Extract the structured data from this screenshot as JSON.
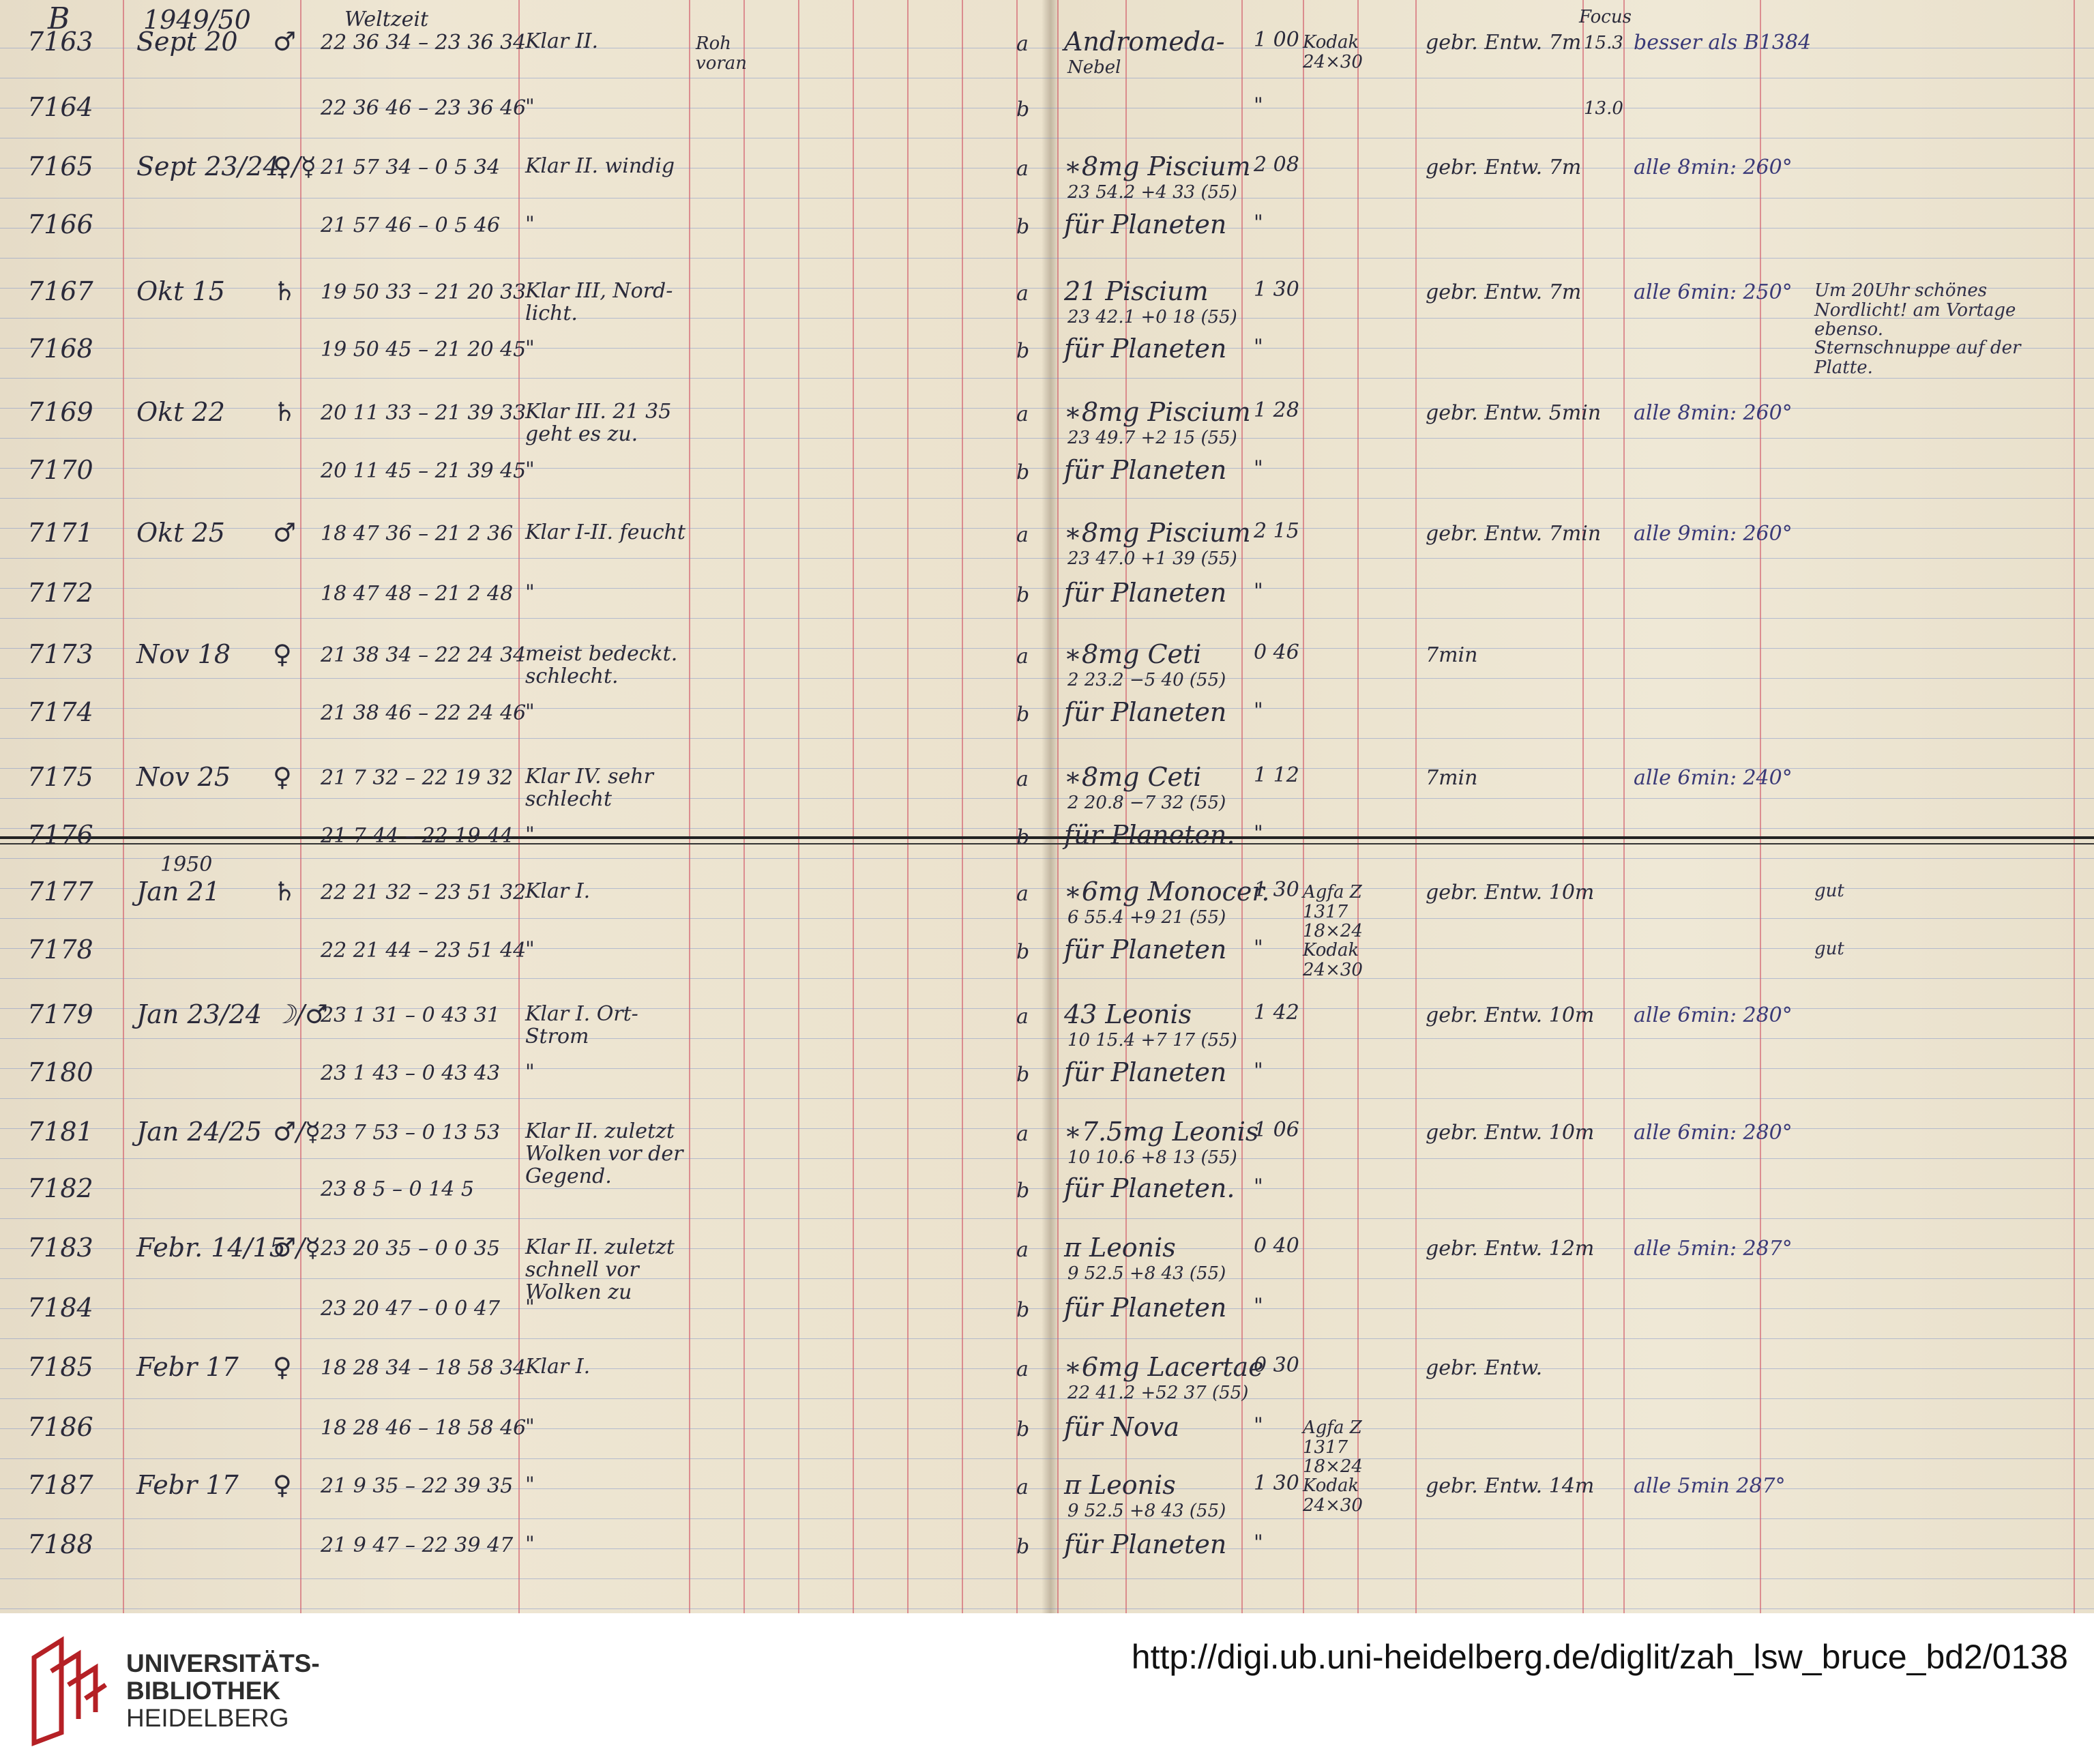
{
  "header": {
    "sheet": "B",
    "years": "1949/50",
    "time_label": "Weltzeit",
    "focus_label": "Focus",
    "note_header": "Roh voran"
  },
  "entries": [
    {
      "no": "7163",
      "date": "Sept 20",
      "day": "♂",
      "time": "22 36 34 – 23 36 34",
      "sky": "Klar II.",
      "p": "a",
      "object": "Andromeda-",
      "obj2": "Nebel",
      "mag": "1 00",
      "plate": "Kodak 24×30",
      "dev": "gebr. Entw. 7m",
      "focus": "15.3",
      "remark": "besser als B1384"
    },
    {
      "no": "7164",
      "time": "22 36 46 – 23 36 46",
      "sky": "\"",
      "p": "b",
      "mag": "\"",
      "focus": "13.0"
    },
    {
      "no": "7165",
      "date": "Sept 23/24",
      "day": "♀/☿",
      "time": "21 57 34 – 0 5 34",
      "sky": "Klar II. windig",
      "p": "a",
      "object": "∗8mg Piscium",
      "obj2": "23 54.2 +4 33 (55)",
      "mag": "2 08",
      "dev": "gebr. Entw. 7m",
      "remark": "alle 8min: 260°"
    },
    {
      "no": "7166",
      "time": "21 57 46 – 0 5 46",
      "sky": "\"",
      "p": "b",
      "object": "für Planeten",
      "mag": "\""
    },
    {
      "no": "7167",
      "date": "Okt 15",
      "day": "♄",
      "time": "19 50 33 – 21 20 33",
      "sky": "Klar III, Nord-licht.",
      "p": "a",
      "object": "21 Piscium",
      "obj2": "23 42.1 +0 18 (55)",
      "mag": "1 30",
      "dev": "gebr. Entw. 7m",
      "remark": "alle 6min: 250°",
      "note": "Um 20Uhr schönes Nordlicht! am Vortage ebenso."
    },
    {
      "no": "7168",
      "time": "19 50 45 – 21 20 45",
      "sky": "\"",
      "p": "b",
      "object": "für Planeten",
      "mag": "\"",
      "note": "Sternschnuppe auf der Platte."
    },
    {
      "no": "7169",
      "date": "Okt 22",
      "day": "♄",
      "time": "20 11 33 – 21 39 33",
      "sky": "Klar III. 21 35 geht es zu.",
      "p": "a",
      "object": "∗8mg Piscium",
      "obj2": "23 49.7 +2 15 (55)",
      "mag": "1 28",
      "dev": "gebr. Entw. 5min",
      "remark": "alle 8min: 260°"
    },
    {
      "no": "7170",
      "time": "20 11 45 – 21 39 45",
      "sky": "\"",
      "p": "b",
      "object": "für Planeten",
      "mag": "\""
    },
    {
      "no": "7171",
      "date": "Okt 25",
      "day": "♂",
      "time": "18 47 36 – 21 2 36",
      "sky": "Klar I-II. feucht",
      "p": "a",
      "object": "∗8mg Piscium",
      "obj2": "23 47.0 +1 39 (55)",
      "mag": "2 15",
      "dev": "gebr. Entw. 7min",
      "remark": "alle 9min: 260°"
    },
    {
      "no": "7172",
      "time": "18 47 48 – 21 2 48",
      "sky": "\"",
      "p": "b",
      "object": "für Planeten",
      "mag": "\""
    },
    {
      "no": "7173",
      "date": "Nov 18",
      "day": "♀",
      "time": "21 38 34 – 22 24 34",
      "sky": "meist bedeckt. schlecht.",
      "p": "a",
      "object": "∗8mg Ceti",
      "obj2": "2 23.2 −5 40 (55)",
      "mag": "0 46",
      "dev": "7min"
    },
    {
      "no": "7174",
      "time": "21 38 46 – 22 24 46",
      "sky": "\"",
      "p": "b",
      "object": "für Planeten",
      "mag": "\""
    },
    {
      "no": "7175",
      "date": "Nov 25",
      "day": "♀",
      "time": "21 7 32 – 22 19 32",
      "sky": "Klar IV. sehr schlecht",
      "p": "a",
      "object": "∗8mg Ceti",
      "obj2": "2 20.8 −7 32 (55)",
      "mag": "1 12",
      "dev": "7min",
      "remark": "alle 6min: 240°"
    },
    {
      "no": "7176",
      "time": "21 7 44 – 22 19 44",
      "sky": "\"",
      "p": "b",
      "object": "für Planeten.",
      "mag": "\""
    },
    {
      "no": "7177",
      "year": "1950",
      "date": "Jan 21",
      "day": "♄",
      "time": "22 21 32 – 23 51 32",
      "sky": "Klar I.",
      "p": "a",
      "object": "∗6mg Monocer.",
      "obj2": "6 55.4 +9 21 (55)",
      "mag": "1 30",
      "plate": "Agfa Z 1317 18×24",
      "dev": "gebr. Entw. 10m",
      "note": "gut"
    },
    {
      "no": "7178",
      "time": "22 21 44 – 23 51 44",
      "sky": "\"",
      "p": "b",
      "object": "für Planeten",
      "mag": "\"",
      "plate": "Kodak 24×30",
      "note": "gut"
    },
    {
      "no": "7179",
      "date": "Jan 23/24",
      "day": "☽/♂",
      "time": "23 1 31 – 0 43 31",
      "sky": "Klar I. Ort-Strom",
      "p": "a",
      "object": "43 Leonis",
      "obj2": "10 15.4 +7 17 (55)",
      "mag": "1 42",
      "dev": "gebr. Entw. 10m",
      "remark": "alle 6min: 280°"
    },
    {
      "no": "7180",
      "time": "23 1 43 – 0 43 43",
      "sky": "\"",
      "p": "b",
      "object": "für Planeten",
      "mag": "\""
    },
    {
      "no": "7181",
      "date": "Jan 24/25",
      "day": "♂/☿",
      "time": "23 7 53 – 0 13 53",
      "sky": "Klar II. zuletzt Wolken vor der Gegend.",
      "p": "a",
      "object": "∗7.5mg Leonis",
      "obj2": "10 10.6 +8 13 (55)",
      "mag": "1 06",
      "dev": "gebr. Entw. 10m",
      "remark": "alle 6min: 280°"
    },
    {
      "no": "7182",
      "time": "23 8 5 – 0 14 5",
      "sky": "",
      "p": "b",
      "object": "für Planeten.",
      "mag": "\""
    },
    {
      "no": "7183",
      "date": "Febr. 14/15",
      "day": "♂/☿",
      "time": "23 20 35 – 0 0 35",
      "sky": "Klar II. zuletzt schnell vor Wolken zu",
      "p": "a",
      "object": "π Leonis",
      "obj2": "9 52.5 +8 43 (55)",
      "mag": "0 40",
      "dev": "gebr. Entw. 12m",
      "remark": "alle 5min: 287°"
    },
    {
      "no": "7184",
      "time": "23 20 47 – 0 0 47",
      "sky": "\"",
      "p": "b",
      "object": "für Planeten",
      "mag": "\""
    },
    {
      "no": "7185",
      "date": "Febr 17",
      "day": "♀",
      "time": "18 28 34 – 18 58 34",
      "sky": "Klar I.",
      "p": "a",
      "object": "∗6mg Lacertae",
      "obj2": "22 41.2 +52 37 (55)",
      "mag": "0 30",
      "dev": "gebr. Entw."
    },
    {
      "no": "7186",
      "time": "18 28 46 – 18 58 46",
      "sky": "\"",
      "p": "b",
      "object": "für Nova",
      "mag": "\"",
      "plate": "Agfa Z 1317 18×24"
    },
    {
      "no": "7187",
      "date": "Febr 17",
      "day": "♀",
      "time": "21 9 35 – 22 39 35",
      "sky": "\"",
      "p": "a",
      "object": "π Leonis",
      "obj2": "9 52.5 +8 43 (55)",
      "mag": "1 30",
      "plate": "Kodak 24×30",
      "dev": "gebr. Entw. 14m",
      "remark": "alle 5min 287°"
    },
    {
      "no": "7188",
      "time": "21 9 47 – 22 39 47",
      "sky": "\"",
      "p": "b",
      "object": "für Planeten",
      "mag": "\""
    }
  ],
  "footer": {
    "logo_lines": [
      "UNIVERSITÄTS-",
      "BIBLIOTHEK",
      "HEIDELBERG"
    ],
    "url": "http://digi.ub.uni-heidelberg.de/diglit/zah_lsw_bruce_bd2/0138"
  },
  "colors": {
    "ruling_red": "#cd465a",
    "ruling_blue": "#6e87c8",
    "ink": "#2b2b3a",
    "logo_red": "#b52025"
  }
}
